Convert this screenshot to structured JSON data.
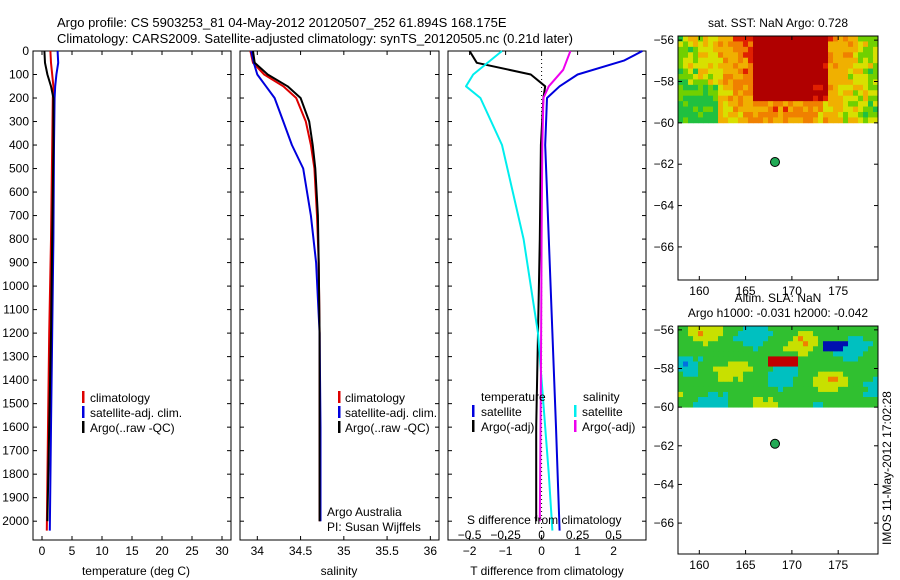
{
  "header": {
    "line1": "Argo profile: CS 5903253_81 04-May-2012 20120507_252 61.894S 168.175E",
    "line2": "Climatology: CARS2009. Satellite-adjusted climatology: synTS_20120505.nc (0.21d later)"
  },
  "side_label": "IMOS 11-May-2012 17:02:28",
  "colors": {
    "red": "#dd0000",
    "blue": "#0000dd",
    "black": "#000000",
    "cyan": "#00eeee",
    "magenta": "#ee00ee",
    "dot": "#22aa55"
  },
  "chart_data": [
    {
      "type": "line",
      "id": "temperature",
      "xlabel": "temperature (deg C)",
      "xlim": [
        -1.5,
        31.5
      ],
      "ylim": [
        2080,
        0
      ],
      "xticks": [
        0,
        5,
        10,
        15,
        20,
        25,
        30
      ],
      "yticks": [
        0,
        100,
        200,
        300,
        400,
        500,
        600,
        700,
        800,
        900,
        1000,
        1100,
        1200,
        1300,
        1400,
        1500,
        1600,
        1700,
        1800,
        1900,
        2000
      ],
      "legend": [
        "climatology",
        "satellite-adj. clim.",
        "Argo(..raw -QC)"
      ],
      "series": [
        {
          "name": "climatology",
          "color": "red",
          "x": [
            1.4,
            1.5,
            1.7,
            1.9,
            1.8,
            1.7,
            1.5,
            1.2,
            1.0,
            0.8
          ],
          "y": [
            0,
            50,
            100,
            150,
            200,
            400,
            800,
            1200,
            1600,
            2040
          ]
        },
        {
          "name": "satellite-adj. clim.",
          "color": "blue",
          "x": [
            2.6,
            2.7,
            2.4,
            2.2,
            2.1,
            2.0,
            1.9,
            1.7,
            1.5,
            1.3
          ],
          "y": [
            0,
            50,
            100,
            150,
            200,
            400,
            800,
            1200,
            1600,
            2040
          ]
        },
        {
          "name": "Argo(..raw -QC)",
          "color": "black",
          "x": [
            0.4,
            0.5,
            0.9,
            1.5,
            1.9,
            1.9,
            1.7,
            1.5,
            1.2,
            0.9
          ],
          "y": [
            0,
            50,
            100,
            150,
            200,
            400,
            800,
            1200,
            1600,
            2000
          ]
        }
      ]
    },
    {
      "type": "line",
      "id": "salinity",
      "xlabel": "salinity",
      "xlim": [
        33.8,
        36.1
      ],
      "ylim": [
        2080,
        0
      ],
      "xticks": [
        34,
        34.5,
        35,
        35.5,
        36
      ],
      "legend": [
        "climatology",
        "satellite-adj. clim.",
        "Argo(..raw -QC)"
      ],
      "series": [
        {
          "name": "climatology",
          "color": "red",
          "x": [
            33.92,
            33.95,
            34.08,
            34.3,
            34.45,
            34.56,
            34.62,
            34.66,
            34.69,
            34.71,
            34.72,
            34.72,
            34.72
          ],
          "y": [
            0,
            50,
            100,
            150,
            200,
            300,
            400,
            500,
            700,
            900,
            1200,
            1600,
            2000
          ]
        },
        {
          "name": "satellite-adj. clim.",
          "color": "blue",
          "x": [
            33.93,
            33.96,
            34.0,
            34.1,
            34.2,
            34.3,
            34.4,
            34.53,
            34.62,
            34.68,
            34.72,
            34.73,
            34.73
          ],
          "y": [
            0,
            50,
            100,
            150,
            200,
            300,
            400,
            500,
            700,
            900,
            1200,
            1600,
            2000
          ]
        },
        {
          "name": "Argo(..raw -QC)",
          "color": "black",
          "x": [
            33.95,
            33.97,
            34.12,
            34.35,
            34.5,
            34.6,
            34.64,
            34.67,
            34.7,
            34.71,
            34.72,
            34.72,
            34.72
          ],
          "y": [
            0,
            50,
            100,
            150,
            200,
            300,
            400,
            500,
            700,
            900,
            1200,
            1600,
            2000
          ]
        }
      ],
      "annotation": {
        "line1": "Argo Australia",
        "line2": "PI: Susan Wijffels"
      }
    },
    {
      "type": "line",
      "id": "difference",
      "xlabel": "T difference from climatology",
      "xlabel_top": "S difference from climatology",
      "xlim": [
        -2.6,
        2.9
      ],
      "ylim": [
        2080,
        0
      ],
      "xticks": [
        -2,
        -1,
        0,
        1,
        2
      ],
      "xticks_top": [
        -0.5,
        -0.25,
        0,
        0.25,
        0.5
      ],
      "legend_headers": [
        "temperature",
        "salinity"
      ],
      "legend_left": [
        "satellite",
        "Argo(-adj)"
      ],
      "legend_right": [
        "satellite",
        "Argo(-adj)"
      ],
      "series": [
        {
          "name": "temperature satellite",
          "color": "blue",
          "x": [
            2.8,
            2.3,
            1.0,
            0.5,
            0.15,
            0.1,
            0.2,
            0.3,
            0.4,
            0.5
          ],
          "y": [
            0,
            40,
            100,
            150,
            200,
            400,
            800,
            1200,
            1600,
            2040
          ]
        },
        {
          "name": "temperature Argo(-adj)",
          "color": "black",
          "x": [
            -2.0,
            -1.8,
            -0.3,
            0.1,
            0.05,
            -0.02,
            -0.05,
            -0.1,
            -0.15,
            -0.15
          ],
          "y": [
            0,
            50,
            100,
            150,
            200,
            400,
            800,
            1200,
            1600,
            2000
          ]
        },
        {
          "name": "salinity satellite",
          "color": "cyan",
          "x": [
            -1.1,
            -1.9,
            -2.1,
            -1.7,
            -1.1,
            -0.5,
            -0.1,
            0.0,
            0.1,
            0.2,
            0.3
          ],
          "y": [
            0,
            100,
            150,
            200,
            400,
            800,
            1200,
            1400,
            1600,
            1800,
            2040
          ]
        },
        {
          "name": "salinity Argo(-adj)",
          "color": "magenta",
          "x": [
            0.8,
            0.6,
            0.2,
            0.05,
            0.02,
            0.0,
            -0.02,
            -0.05
          ],
          "y": [
            0,
            80,
            150,
            200,
            400,
            800,
            1400,
            2000
          ]
        }
      ]
    }
  ],
  "maps": [
    {
      "id": "sst",
      "title": "sat. SST: NaN Argo: 0.728",
      "title2": "",
      "xlim": [
        157.7,
        179.3
      ],
      "ylim": [
        -67.6,
        -55.8
      ],
      "xticks": [
        160,
        165,
        170,
        175
      ],
      "yticks": [
        -56,
        -58,
        -60,
        -62,
        -64,
        -66
      ],
      "point": [
        168.175,
        -61.894
      ]
    },
    {
      "id": "sla",
      "title": "Altim. SLA: NaN",
      "title2": "Argo h1000: -0.031 h2000: -0.042",
      "xlim": [
        157.7,
        179.3
      ],
      "ylim": [
        -67.6,
        -55.8
      ],
      "xticks": [
        160,
        165,
        170,
        175
      ],
      "yticks": [
        -56,
        -58,
        -60,
        -62,
        -64,
        -66
      ],
      "point": [
        168.175,
        -61.894
      ]
    }
  ]
}
